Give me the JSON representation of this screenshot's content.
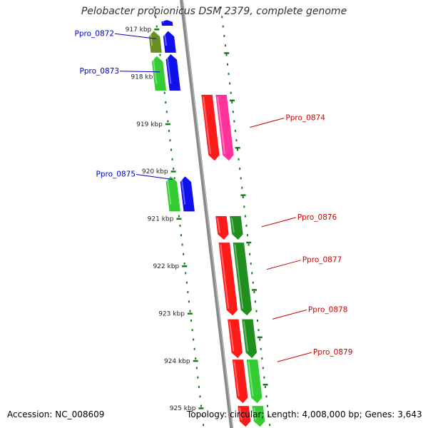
{
  "title": "Pelobacter propionicus DSM 2379, complete genome",
  "footer": {
    "accession": "Accession: NC_008609",
    "summary": "Topology: circular; Length: 4,008,000 bp; Genes: 3,643"
  },
  "colors": {
    "ruler": "#1a7a1a",
    "backbone": "#8a8a8a",
    "label_minus": "#0000cc",
    "label_plus": "#cc0000",
    "gene_red": "#ff1a1a",
    "gene_pink": "#ff3399",
    "gene_green": "#33cc33",
    "gene_darkgreen": "#1f8f1f",
    "gene_olive": "#6b8e23",
    "gene_blue": "#1010ee"
  },
  "ruler_ticks": [
    "917 kbp",
    "918 kbp",
    "919 kbp",
    "920 kbp",
    "921 kbp",
    "922 kbp",
    "923 kbp",
    "924 kbp",
    "925 kbp"
  ],
  "genes": [
    {
      "id": "g-top-blue",
      "lane": "left2",
      "start": 916.8,
      "end": 916.93,
      "color": "blue",
      "strand": "minus"
    },
    {
      "id": "g-olive",
      "lane": "left1",
      "start": 917.03,
      "end": 917.5,
      "color": "olive",
      "strand": "minus"
    },
    {
      "id": "g-blue-0872",
      "lane": "left2",
      "start": 917.03,
      "end": 917.5,
      "color": "blue",
      "strand": "minus"
    },
    {
      "id": "g-green-0873",
      "lane": "left1",
      "start": 917.56,
      "end": 918.3,
      "color": "green",
      "strand": "minus"
    },
    {
      "id": "g-blue-0873",
      "lane": "left2",
      "start": 917.52,
      "end": 918.3,
      "color": "blue",
      "strand": "minus"
    },
    {
      "id": "g-red-0874",
      "lane": "right1",
      "start": 918.38,
      "end": 919.78,
      "color": "red",
      "strand": "plus"
    },
    {
      "id": "g-pink-0874",
      "lane": "right2",
      "start": 918.38,
      "end": 919.78,
      "color": "pink",
      "strand": "plus"
    },
    {
      "id": "g-green-0875",
      "lane": "left1",
      "start": 920.1,
      "end": 920.85,
      "color": "green",
      "strand": "minus"
    },
    {
      "id": "g-blue-0875",
      "lane": "left2",
      "start": 920.1,
      "end": 920.85,
      "color": "blue",
      "strand": "minus"
    },
    {
      "id": "g-red-0876",
      "lane": "right1",
      "start": 920.94,
      "end": 921.45,
      "color": "red",
      "strand": "plus"
    },
    {
      "id": "g-green-0876",
      "lane": "right2",
      "start": 920.94,
      "end": 921.45,
      "color": "darkgreen",
      "strand": "plus"
    },
    {
      "id": "g-red-0877",
      "lane": "right1",
      "start": 921.5,
      "end": 923.05,
      "color": "red",
      "strand": "plus"
    },
    {
      "id": "g-green-0877",
      "lane": "right2",
      "start": 921.5,
      "end": 923.05,
      "color": "darkgreen",
      "strand": "plus"
    },
    {
      "id": "g-red-0878",
      "lane": "right1",
      "start": 923.12,
      "end": 923.95,
      "color": "red",
      "strand": "plus"
    },
    {
      "id": "g-green-0878",
      "lane": "right2",
      "start": 923.12,
      "end": 923.95,
      "color": "darkgreen",
      "strand": "plus"
    },
    {
      "id": "g-red-0879",
      "lane": "right1",
      "start": 923.97,
      "end": 924.9,
      "color": "red",
      "strand": "plus"
    },
    {
      "id": "g-green-0879",
      "lane": "right2",
      "start": 923.97,
      "end": 924.9,
      "color": "green",
      "strand": "plus"
    },
    {
      "id": "g-red-bottom",
      "lane": "right1",
      "start": 924.95,
      "end": 925.4,
      "color": "red",
      "strand": "plus"
    },
    {
      "id": "g-green-bottom",
      "lane": "right2",
      "start": 924.95,
      "end": 925.4,
      "color": "green",
      "strand": "plus"
    }
  ],
  "labels": [
    {
      "text": "Ppro_0872",
      "side": "left",
      "kbp": 917.2
    },
    {
      "text": "Ppro_0873",
      "side": "left",
      "kbp": 917.9
    },
    {
      "text": "Ppro_0874",
      "side": "right",
      "kbp": 918.95
    },
    {
      "text": "Ppro_0875",
      "side": "left",
      "kbp": 920.17
    },
    {
      "text": "Ppro_0876",
      "side": "right",
      "kbp": 921.05
    },
    {
      "text": "Ppro_0877",
      "side": "right",
      "kbp": 921.95
    },
    {
      "text": "Ppro_0878",
      "side": "right",
      "kbp": 923.0
    },
    {
      "text": "Ppro_0879",
      "side": "right",
      "kbp": 923.9
    }
  ]
}
